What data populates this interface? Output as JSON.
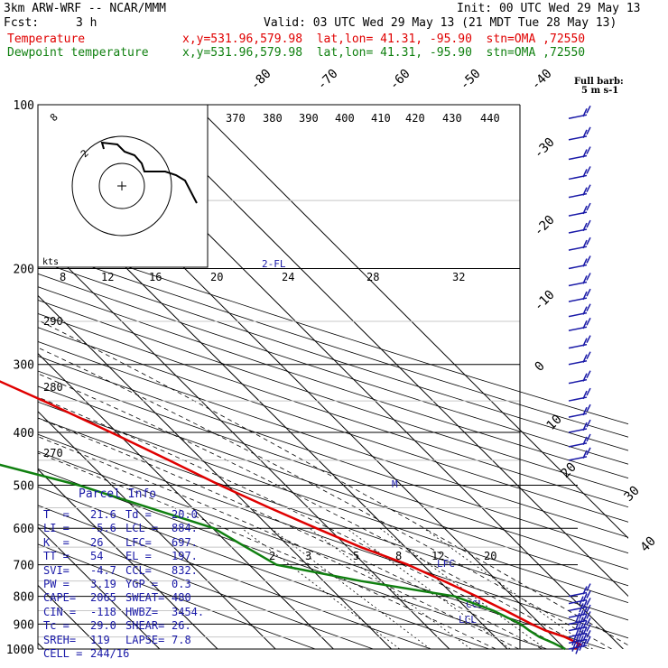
{
  "header": {
    "model": "3km ARW-WRF -- NCAR/MMM",
    "init": "Init: 00 UTC Wed 29 May 13",
    "fcst_label": "Fcst:",
    "fcst_value": "3 h",
    "valid": "Valid: 03 UTC Wed 29 May 13 (21 MDT Tue 28 May 13)",
    "temp_label": "Temperature",
    "dew_label": "Dewpoint temperature",
    "loc_temp": "x,y=531.96,579.98  lat,lon= 41.31, -95.90  stn=OMA ,72550",
    "loc_dew": "x,y=531.96,579.98  lat,lon= 41.31, -95.90  stn=OMA ,72550"
  },
  "colors": {
    "temperature": "#e00000",
    "dewpoint": "#108010",
    "info": "#1a1aa8",
    "barbs": "#1a1aa8"
  },
  "barb_legend": {
    "title": "Full barb:",
    "units": "5 m s-1"
  },
  "hodograph_labels": {
    "kts": "kts",
    "ring_outer": "8",
    "ring_inner": "2"
  },
  "parcel_info": {
    "title": "Parcel Info",
    "rows": [
      [
        "T  =",
        "21.6",
        "Td =",
        "20.0"
      ],
      [
        "LI =",
        "-5.6",
        "LCL =",
        "884."
      ],
      [
        "K  =",
        "26",
        "LFC=",
        "697."
      ],
      [
        "TT =",
        "54",
        "EL =",
        "197."
      ],
      [
        "SVI=",
        "-4.7",
        "CCL=",
        "832."
      ],
      [
        "PW =",
        "3.19",
        "YGP =",
        "0.3"
      ],
      [
        "CAPE=",
        "2065",
        "SWEAT=",
        "480"
      ],
      [
        "CIN =",
        "-118",
        "HWBZ=",
        "3454."
      ],
      [
        "Tc =",
        "29.0",
        "SHEAR=",
        "26."
      ],
      [
        "SREH=",
        "119",
        "LAPSE=",
        "7.8"
      ],
      [
        "CELL =",
        "244/16",
        "",
        ""
      ]
    ]
  },
  "chart_data": {
    "type": "line",
    "subtype": "skew-T log-P diagram",
    "y_axis": {
      "label": "pressure (hPa)",
      "scale": "log",
      "range": [
        1000,
        100
      ],
      "ticks": [
        100,
        200,
        300,
        400,
        500,
        600,
        700,
        800,
        900,
        1000
      ]
    },
    "isotherm_labels": [
      -80,
      -70,
      -60,
      -50,
      -40,
      -30,
      -20,
      -10,
      0,
      10,
      20,
      30,
      40
    ],
    "theta_labels": [
      {
        "p": 130,
        "text": "370"
      },
      {
        "p": 130,
        "text": "380"
      },
      {
        "p": 130,
        "text": "390"
      },
      {
        "p": 130,
        "text": "400"
      },
      {
        "p": 130,
        "text": "410"
      },
      {
        "p": 130,
        "text": "420"
      },
      {
        "p": 130,
        "text": "430"
      },
      {
        "p": 130,
        "text": "440"
      },
      {
        "p": 240,
        "text": "290"
      },
      {
        "p": 340,
        "text": "280"
      },
      {
        "p": 460,
        "text": "270"
      }
    ],
    "wind_speed_labels": [
      "8",
      "12",
      "16",
      "20",
      "24",
      "28",
      "32"
    ],
    "mixing_ratio_labels": [
      "2",
      "3",
      "5",
      "8",
      "12",
      "20"
    ],
    "level_labels": [
      "2-FL",
      "M",
      "LFC",
      "CCL",
      "LCL"
    ],
    "series": [
      {
        "name": "Temperature",
        "points": [
          [
            1000,
            21.6
          ],
          [
            980,
            23.4
          ],
          [
            950,
            22.0
          ],
          [
            925,
            19.8
          ],
          [
            900,
            18.5
          ],
          [
            850,
            16.3
          ],
          [
            800,
            13.8
          ],
          [
            750,
            10.8
          ],
          [
            700,
            7.4
          ],
          [
            650,
            2.3
          ],
          [
            600,
            -2.1
          ],
          [
            550,
            -6.7
          ],
          [
            500,
            -11.3
          ],
          [
            450,
            -15.8
          ],
          [
            400,
            -21.0
          ],
          [
            350,
            -27.2
          ],
          [
            300,
            -35.0
          ],
          [
            250,
            -44.0
          ],
          [
            200,
            -55.0
          ],
          [
            180,
            -58.5
          ],
          [
            160,
            -61.8
          ],
          [
            140,
            -63.9
          ],
          [
            120,
            -65.7
          ],
          [
            100,
            -67.6
          ]
        ]
      },
      {
        "name": "Dewpoint temperature",
        "points": [
          [
            1000,
            20.0
          ],
          [
            975,
            19.0
          ],
          [
            950,
            17.6
          ],
          [
            925,
            17.0
          ],
          [
            900,
            16.6
          ],
          [
            850,
            14.2
          ],
          [
            800,
            10.0
          ],
          [
            750,
            -3.5
          ],
          [
            700,
            -15.3
          ],
          [
            650,
            -17.5
          ],
          [
            600,
            -19.8
          ],
          [
            550,
            -27.4
          ],
          [
            500,
            -35.7
          ],
          [
            450,
            -48.0
          ],
          [
            400,
            -51.6
          ],
          [
            350,
            -57.3
          ],
          [
            300,
            -65.0
          ],
          [
            250,
            -73.9
          ],
          [
            200,
            -84.4
          ],
          [
            180,
            -85.5
          ],
          [
            160,
            -86.0
          ],
          [
            140,
            -86.6
          ],
          [
            120,
            -87.5
          ],
          [
            100,
            -88.2
          ]
        ]
      }
    ],
    "wind_barbs_kt": [
      {
        "p": 1000,
        "spd": 40
      },
      {
        "p": 975,
        "spd": 45
      },
      {
        "p": 950,
        "spd": 45
      },
      {
        "p": 925,
        "spd": 40
      },
      {
        "p": 900,
        "spd": 40
      },
      {
        "p": 875,
        "spd": 35
      },
      {
        "p": 850,
        "spd": 30
      },
      {
        "p": 825,
        "spd": 25
      },
      {
        "p": 800,
        "spd": 20
      },
      {
        "p": 450,
        "spd": 20
      },
      {
        "p": 425,
        "spd": 20
      },
      {
        "p": 400,
        "spd": 20
      },
      {
        "p": 375,
        "spd": 20
      },
      {
        "p": 350,
        "spd": 20
      },
      {
        "p": 325,
        "spd": 20
      },
      {
        "p": 300,
        "spd": 20
      },
      {
        "p": 280,
        "spd": 20
      },
      {
        "p": 260,
        "spd": 20
      },
      {
        "p": 245,
        "spd": 20
      },
      {
        "p": 230,
        "spd": 20
      },
      {
        "p": 215,
        "spd": 20
      },
      {
        "p": 200,
        "spd": 20
      },
      {
        "p": 185,
        "spd": 20
      },
      {
        "p": 172,
        "spd": 20
      },
      {
        "p": 160,
        "spd": 20
      },
      {
        "p": 148,
        "spd": 20
      },
      {
        "p": 137,
        "spd": 20
      },
      {
        "p": 126,
        "spd": 20
      },
      {
        "p": 116,
        "spd": 20
      },
      {
        "p": 106,
        "spd": 20
      }
    ]
  }
}
